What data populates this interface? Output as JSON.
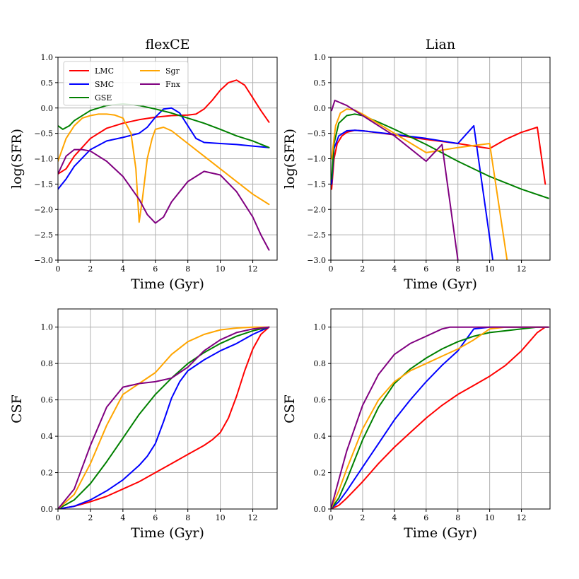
{
  "chart_data": [
    {
      "type": "line",
      "panel": "flexce-sfr",
      "title": "flexCE",
      "xlabel": "Time (Gyr)",
      "ylabel": "log(SFR)",
      "xlim": [
        0,
        13.5
      ],
      "ylim": [
        -3.0,
        1.0
      ],
      "xticks": [
        0,
        2,
        4,
        6,
        8,
        10,
        12
      ],
      "yticks": [
        -3.0,
        -2.5,
        -2.0,
        -1.5,
        -1.0,
        -0.5,
        0.0,
        0.5,
        1.0
      ],
      "ytick_labels": [
        "−3.0",
        "−2.5",
        "−2.0",
        "−1.5",
        "−1.0",
        "−0.5",
        "0.0",
        "0.5",
        "1.0"
      ],
      "grid": true,
      "legend": {
        "location": "top-left",
        "ncol": 2,
        "entries": [
          {
            "name": "LMC",
            "color": "#ff0000"
          },
          {
            "name": "Sgr",
            "color": "#ffa500"
          },
          {
            "name": "SMC",
            "color": "#0000ff"
          },
          {
            "name": "Fnx",
            "color": "#800080"
          },
          {
            "name": "GSE",
            "color": "#008000"
          }
        ]
      },
      "series": [
        {
          "name": "LMC",
          "color": "#ff0000",
          "x": [
            0,
            0.5,
            1,
            2,
            3,
            4,
            5,
            6,
            7,
            8,
            8.5,
            9,
            9.5,
            10,
            10.5,
            11,
            11.5,
            12,
            12.5,
            13
          ],
          "y": [
            -1.3,
            -1.2,
            -0.95,
            -0.6,
            -0.4,
            -0.3,
            -0.23,
            -0.18,
            -0.15,
            -0.14,
            -0.12,
            -0.02,
            0.15,
            0.35,
            0.5,
            0.55,
            0.45,
            0.2,
            -0.05,
            -0.28
          ]
        },
        {
          "name": "SMC",
          "color": "#0000ff",
          "x": [
            0,
            0.5,
            1,
            2,
            3,
            4,
            5,
            5.5,
            6,
            6.5,
            7,
            7.5,
            8,
            8.5,
            9,
            10,
            11,
            12,
            13
          ],
          "y": [
            -1.6,
            -1.4,
            -1.15,
            -0.82,
            -0.65,
            -0.58,
            -0.5,
            -0.38,
            -0.18,
            -0.02,
            0.0,
            -0.1,
            -0.35,
            -0.6,
            -0.68,
            -0.7,
            -0.72,
            -0.75,
            -0.78
          ]
        },
        {
          "name": "GSE",
          "color": "#008000",
          "x": [
            0,
            0.3,
            0.7,
            1,
            2,
            3,
            4,
            5,
            6,
            7,
            8,
            9,
            10,
            11,
            12,
            13
          ],
          "y": [
            -0.35,
            -0.42,
            -0.35,
            -0.25,
            -0.05,
            0.05,
            0.08,
            0.05,
            -0.02,
            -0.1,
            -0.2,
            -0.3,
            -0.42,
            -0.55,
            -0.65,
            -0.78
          ]
        },
        {
          "name": "Sgr",
          "color": "#ffa500",
          "x": [
            0,
            0.5,
            1,
            1.5,
            2,
            2.5,
            3,
            3.5,
            4,
            4.5,
            4.8,
            5,
            5.2,
            5.5,
            5.8,
            6,
            6.5,
            7,
            8,
            9,
            10,
            11,
            12,
            13
          ],
          "y": [
            -1.05,
            -0.6,
            -0.35,
            -0.2,
            -0.15,
            -0.12,
            -0.12,
            -0.14,
            -0.2,
            -0.5,
            -1.2,
            -2.25,
            -1.8,
            -1.0,
            -0.6,
            -0.42,
            -0.38,
            -0.45,
            -0.7,
            -0.95,
            -1.2,
            -1.45,
            -1.7,
            -1.9
          ]
        },
        {
          "name": "Fnx",
          "color": "#800080",
          "x": [
            0,
            0.5,
            1,
            1.5,
            2,
            3,
            4,
            5,
            5.5,
            6,
            6.5,
            7,
            8,
            9,
            10,
            11,
            12,
            12.5,
            13
          ],
          "y": [
            -1.3,
            -0.95,
            -0.82,
            -0.82,
            -0.85,
            -1.05,
            -1.35,
            -1.8,
            -2.1,
            -2.27,
            -2.15,
            -1.85,
            -1.45,
            -1.25,
            -1.32,
            -1.65,
            -2.15,
            -2.5,
            -2.8
          ]
        }
      ]
    },
    {
      "type": "line",
      "panel": "lian-sfr",
      "title": "Lian",
      "xlabel": "Time (Gyr)",
      "ylabel": "log(SFR)",
      "xlim": [
        0,
        13.8
      ],
      "ylim": [
        -3.0,
        1.0
      ],
      "xticks": [
        0,
        2,
        4,
        6,
        8,
        10,
        12
      ],
      "yticks": [
        -3.0,
        -2.5,
        -2.0,
        -1.5,
        -1.0,
        -0.5,
        0.0,
        0.5,
        1.0
      ],
      "ytick_labels": [
        "−3.0",
        "−2.5",
        "−2.0",
        "−1.5",
        "−1.0",
        "−0.5",
        "0.0",
        "0.5",
        "1.0"
      ],
      "grid": true,
      "series": [
        {
          "name": "LMC",
          "color": "#ff0000",
          "x": [
            0.05,
            0.2,
            0.4,
            0.7,
            1,
            1.5,
            2,
            4,
            6,
            8,
            10,
            11,
            12,
            13,
            13.5
          ],
          "y": [
            -1.6,
            -1.0,
            -0.7,
            -0.55,
            -0.48,
            -0.44,
            -0.45,
            -0.53,
            -0.62,
            -0.7,
            -0.8,
            -0.62,
            -0.48,
            -0.38,
            -1.5
          ]
        },
        {
          "name": "SMC",
          "color": "#0000ff",
          "x": [
            0.05,
            0.2,
            0.5,
            1,
            1.5,
            2,
            4,
            6,
            8,
            9,
            10.2
          ],
          "y": [
            -1.5,
            -0.8,
            -0.55,
            -0.45,
            -0.44,
            -0.45,
            -0.52,
            -0.6,
            -0.7,
            -0.35,
            -3.0
          ]
        },
        {
          "name": "GSE",
          "color": "#008000",
          "x": [
            0.05,
            0.2,
            0.5,
            1,
            1.5,
            2,
            3,
            4,
            6,
            8,
            10,
            12,
            13.7
          ],
          "y": [
            -1.4,
            -0.7,
            -0.3,
            -0.15,
            -0.12,
            -0.15,
            -0.28,
            -0.42,
            -0.72,
            -1.05,
            -1.35,
            -1.6,
            -1.78
          ]
        },
        {
          "name": "Sgr",
          "color": "#ffa500",
          "x": [
            0.05,
            0.3,
            0.6,
            1,
            1.5,
            2,
            4,
            6,
            8,
            10,
            11.1
          ],
          "y": [
            -1.0,
            -0.35,
            -0.1,
            -0.02,
            -0.04,
            -0.12,
            -0.5,
            -0.88,
            -0.78,
            -0.7,
            -3.0
          ]
        },
        {
          "name": "Fnx",
          "color": "#800080",
          "x": [
            0.05,
            0.25,
            1,
            2,
            4,
            6,
            7,
            8
          ],
          "y": [
            -0.05,
            0.15,
            0.05,
            -0.15,
            -0.55,
            -1.05,
            -0.72,
            -3.0
          ]
        }
      ]
    },
    {
      "type": "line",
      "panel": "flexce-csf",
      "title": "",
      "xlabel": "Time (Gyr)",
      "ylabel": "CSF",
      "xlim": [
        0,
        13.5
      ],
      "ylim": [
        0.0,
        1.1
      ],
      "xticks": [
        0,
        2,
        4,
        6,
        8,
        10,
        12
      ],
      "yticks": [
        0.0,
        0.2,
        0.4,
        0.6,
        0.8,
        1.0
      ],
      "ytick_labels": [
        "0.0",
        "0.2",
        "0.4",
        "0.6",
        "0.8",
        "1.0"
      ],
      "grid": true,
      "series": [
        {
          "name": "LMC",
          "color": "#ff0000",
          "x": [
            0,
            1,
            2,
            3,
            4,
            5,
            6,
            7,
            8,
            9,
            9.5,
            10,
            10.5,
            11,
            11.5,
            12,
            12.5,
            13
          ],
          "y": [
            0,
            0.015,
            0.04,
            0.07,
            0.11,
            0.15,
            0.2,
            0.25,
            0.3,
            0.35,
            0.38,
            0.42,
            0.5,
            0.62,
            0.76,
            0.88,
            0.96,
            1.0
          ]
        },
        {
          "name": "SMC",
          "color": "#0000ff",
          "x": [
            0,
            1,
            2,
            3,
            4,
            5,
            5.5,
            6,
            6.5,
            7,
            7.5,
            8,
            9,
            10,
            11,
            12,
            13
          ],
          "y": [
            0,
            0.015,
            0.05,
            0.1,
            0.16,
            0.24,
            0.29,
            0.36,
            0.48,
            0.61,
            0.7,
            0.76,
            0.82,
            0.87,
            0.91,
            0.96,
            1.0
          ]
        },
        {
          "name": "GSE",
          "color": "#008000",
          "x": [
            0,
            1,
            2,
            3,
            4,
            5,
            6,
            7,
            8,
            9,
            10,
            11,
            12,
            13
          ],
          "y": [
            0,
            0.05,
            0.14,
            0.26,
            0.39,
            0.52,
            0.63,
            0.72,
            0.8,
            0.86,
            0.91,
            0.95,
            0.98,
            1.0
          ]
        },
        {
          "name": "Sgr",
          "color": "#ffa500",
          "x": [
            0,
            1,
            2,
            3,
            4,
            5,
            6,
            7,
            8,
            9,
            10,
            11,
            12,
            13
          ],
          "y": [
            0,
            0.08,
            0.25,
            0.46,
            0.63,
            0.69,
            0.75,
            0.85,
            0.92,
            0.96,
            0.985,
            0.995,
            1.0,
            1.0
          ]
        },
        {
          "name": "Fnx",
          "color": "#800080",
          "x": [
            0,
            1,
            2,
            3,
            4,
            5,
            6,
            7,
            8,
            9,
            10,
            11,
            12,
            13
          ],
          "y": [
            0,
            0.11,
            0.35,
            0.56,
            0.67,
            0.69,
            0.7,
            0.72,
            0.78,
            0.87,
            0.93,
            0.97,
            0.99,
            1.0
          ]
        }
      ]
    },
    {
      "type": "line",
      "panel": "lian-csf",
      "title": "",
      "xlabel": "Time (Gyr)",
      "ylabel": "CSF",
      "xlim": [
        0,
        13.8
      ],
      "ylim": [
        0.0,
        1.1
      ],
      "xticks": [
        0,
        2,
        4,
        6,
        8,
        10,
        12
      ],
      "yticks": [
        0.0,
        0.2,
        0.4,
        0.6,
        0.8,
        1.0
      ],
      "ytick_labels": [
        "0.0",
        "0.2",
        "0.4",
        "0.6",
        "0.8",
        "1.0"
      ],
      "grid": true,
      "series": [
        {
          "name": "LMC",
          "color": "#ff0000",
          "x": [
            0,
            0.5,
            1,
            2,
            3,
            4,
            5,
            6,
            7,
            8,
            9,
            10,
            11,
            12,
            13,
            13.5
          ],
          "y": [
            0,
            0.02,
            0.06,
            0.15,
            0.25,
            0.34,
            0.42,
            0.5,
            0.57,
            0.63,
            0.68,
            0.73,
            0.79,
            0.87,
            0.97,
            1.0
          ]
        },
        {
          "name": "SMC",
          "color": "#0000ff",
          "x": [
            0,
            0.5,
            1,
            2,
            3,
            4,
            5,
            6,
            7,
            8,
            8.5,
            9,
            10,
            12,
            13.7
          ],
          "y": [
            0,
            0.04,
            0.1,
            0.23,
            0.36,
            0.49,
            0.6,
            0.7,
            0.79,
            0.87,
            0.93,
            0.99,
            1.0,
            1.0,
            1.0
          ]
        },
        {
          "name": "GSE",
          "color": "#008000",
          "x": [
            0,
            0.5,
            1,
            2,
            3,
            4,
            5,
            6,
            7,
            8,
            9,
            10,
            11,
            12,
            13,
            13.7
          ],
          "y": [
            0,
            0.06,
            0.16,
            0.38,
            0.56,
            0.69,
            0.77,
            0.83,
            0.88,
            0.92,
            0.95,
            0.97,
            0.98,
            0.99,
            1.0,
            1.0
          ]
        },
        {
          "name": "Sgr",
          "color": "#ffa500",
          "x": [
            0,
            0.5,
            1,
            2,
            3,
            4,
            5,
            6,
            7,
            8,
            9,
            10,
            11,
            13.7
          ],
          "y": [
            0,
            0.1,
            0.22,
            0.44,
            0.6,
            0.7,
            0.76,
            0.8,
            0.84,
            0.88,
            0.93,
            0.99,
            1.0,
            1.0
          ]
        },
        {
          "name": "Fnx",
          "color": "#800080",
          "x": [
            0,
            0.5,
            1,
            2,
            3,
            4,
            5,
            6,
            7,
            7.5,
            8,
            13.7
          ],
          "y": [
            0,
            0.16,
            0.32,
            0.57,
            0.74,
            0.85,
            0.91,
            0.95,
            0.99,
            1.0,
            1.0,
            1.0
          ]
        }
      ]
    }
  ]
}
